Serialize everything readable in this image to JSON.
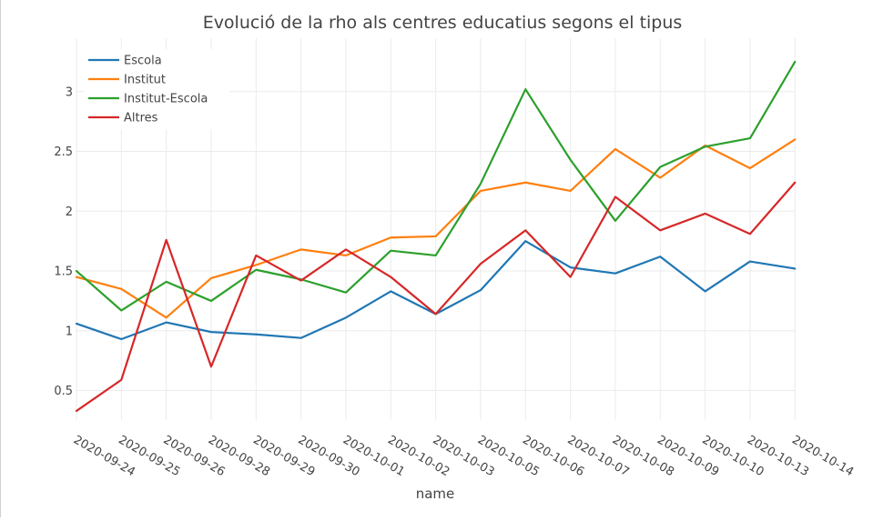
{
  "chart_data": {
    "type": "line",
    "title": "Evolució de la rho als centres educatius segons el tipus",
    "xlabel": "name",
    "ylabel": "",
    "ylim": [
      0.2,
      3.3
    ],
    "y_ticks": [
      0.5,
      1,
      1.5,
      2,
      2.5,
      3
    ],
    "y_tick_labels": [
      "0.5",
      "1",
      "1.5",
      "2",
      "2.5",
      "3"
    ],
    "grid": true,
    "legend_position": "top-left",
    "categories": [
      "2020-09-24",
      "2020-09-25",
      "2020-09-26",
      "2020-09-28",
      "2020-09-29",
      "2020-09-30",
      "2020-10-01",
      "2020-10-02",
      "2020-10-03",
      "2020-10-05",
      "2020-10-06",
      "2020-10-07",
      "2020-10-08",
      "2020-10-09",
      "2020-10-10",
      "2020-10-13",
      "2020-10-14"
    ],
    "series": [
      {
        "name": "Escola",
        "color": "#1f77b4",
        "values": [
          1.06,
          0.93,
          1.07,
          0.99,
          0.97,
          0.94,
          1.11,
          1.33,
          1.14,
          1.34,
          1.75,
          1.53,
          1.48,
          1.62,
          1.33,
          1.58,
          1.52
        ]
      },
      {
        "name": "Institut",
        "color": "#ff7f0e",
        "values": [
          1.45,
          1.35,
          1.11,
          1.44,
          1.55,
          1.68,
          1.63,
          1.78,
          1.79,
          2.17,
          2.24,
          2.17,
          2.52,
          2.28,
          2.55,
          2.36,
          2.6
        ]
      },
      {
        "name": "Institut-Escola",
        "color": "#2ca02c",
        "values": [
          1.5,
          1.17,
          1.41,
          1.25,
          1.51,
          1.43,
          1.32,
          1.67,
          1.63,
          2.23,
          3.02,
          2.43,
          1.92,
          2.37,
          2.54,
          2.61,
          3.25
        ]
      },
      {
        "name": "Altres",
        "color": "#d62728",
        "values": [
          0.33,
          0.59,
          1.76,
          0.7,
          1.63,
          1.42,
          1.68,
          1.45,
          1.14,
          1.56,
          1.84,
          1.45,
          2.12,
          1.84,
          1.98,
          1.81,
          2.24
        ]
      }
    ]
  }
}
